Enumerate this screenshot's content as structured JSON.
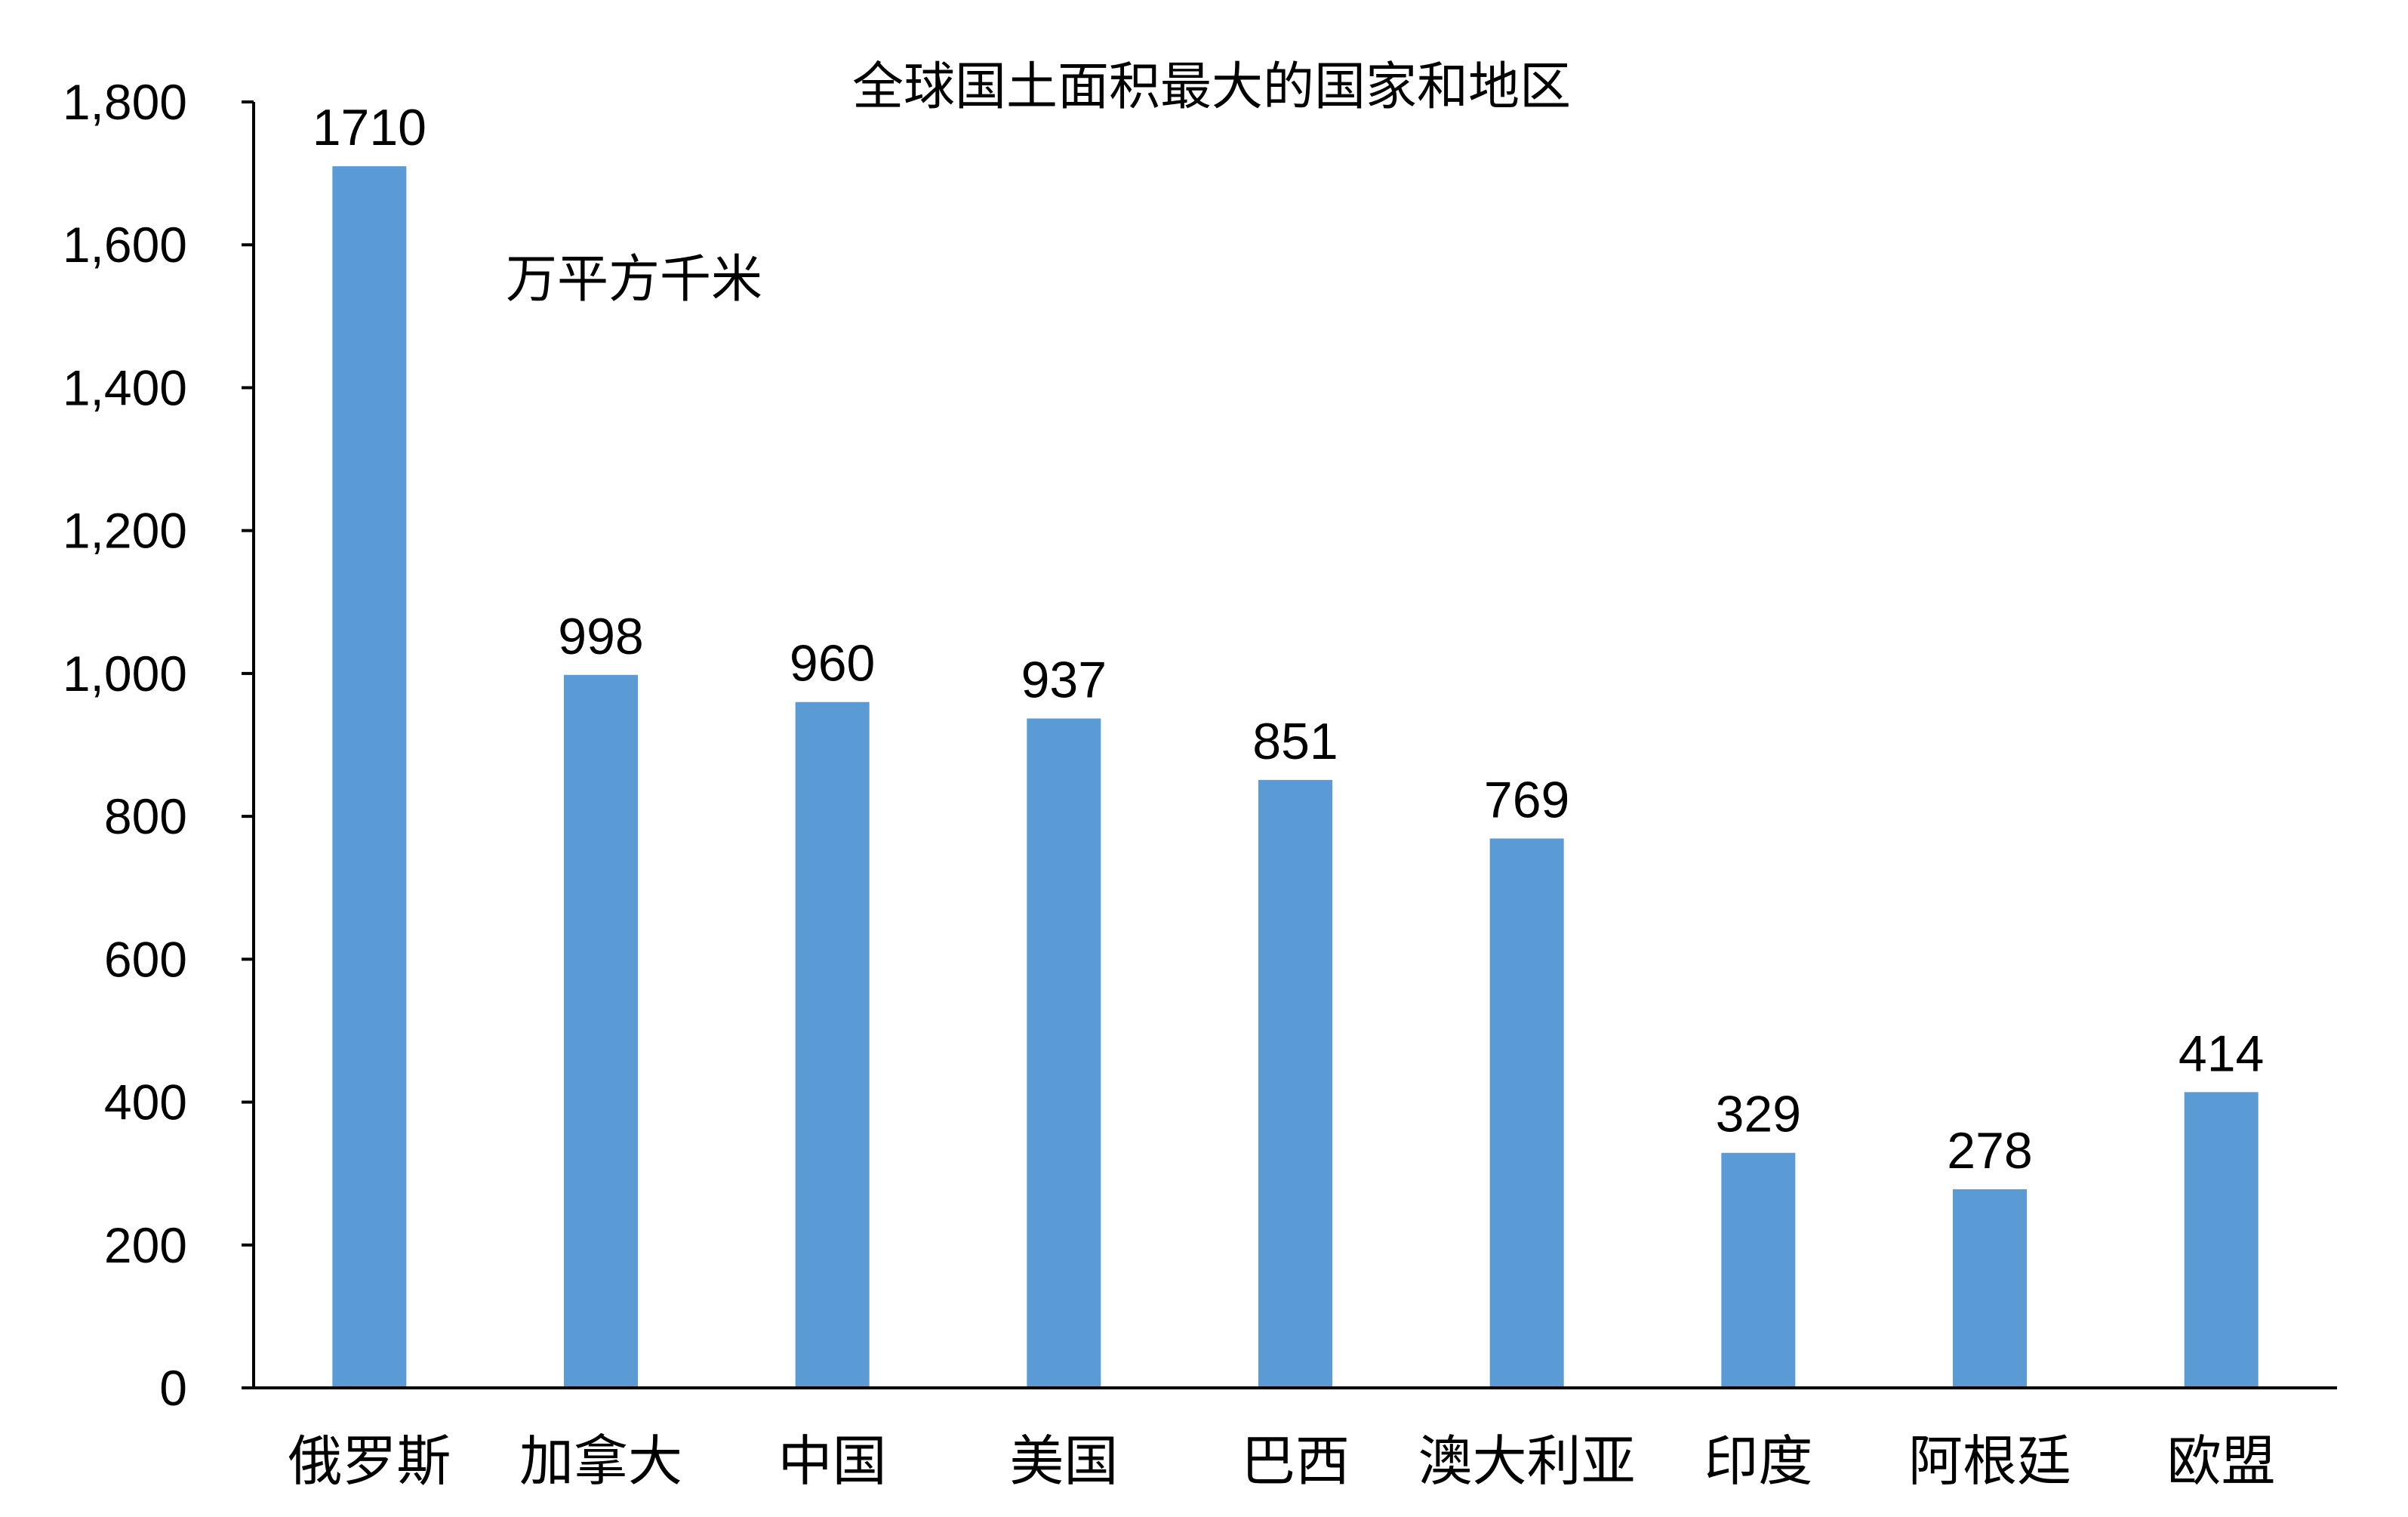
{
  "chart_data": {
    "type": "bar",
    "title": "全球国土面积最大的国家和地区",
    "unit_label": "万平方千米",
    "xlabel": "",
    "ylabel": "",
    "categories": [
      "俄罗斯",
      "加拿大",
      "中国",
      "美国",
      "巴西",
      "澳大利亚",
      "印度",
      "阿根廷",
      "欧盟"
    ],
    "values": [
      1710,
      998,
      960,
      937,
      851,
      769,
      329,
      278,
      414
    ],
    "data_labels": [
      "1710",
      "998",
      "960",
      "937",
      "851",
      "769",
      "329",
      "278",
      "414"
    ],
    "ylim": [
      0,
      1800
    ],
    "yticks": [
      0,
      200,
      400,
      600,
      800,
      1000,
      1200,
      1400,
      1600,
      1800
    ],
    "ytick_labels": [
      "0",
      "200",
      "400",
      "600",
      "800",
      "1,000",
      "1,200",
      "1,400",
      "1,600",
      "1,800"
    ],
    "grid": false,
    "legend": "none",
    "bar_color": "#5B9BD5",
    "axis_color": "#000000"
  }
}
